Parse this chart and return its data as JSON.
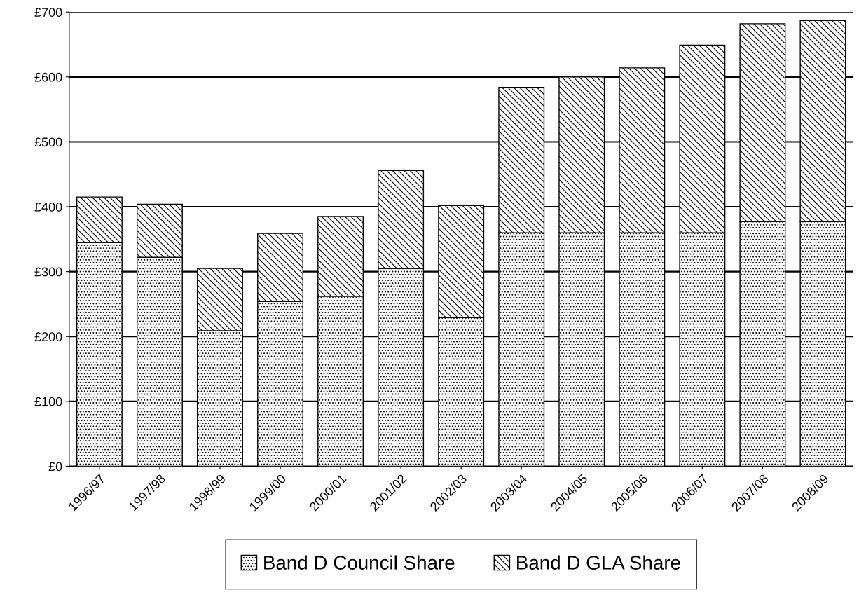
{
  "chart_data": {
    "type": "bar",
    "stacked": true,
    "categories": [
      "1996/97",
      "1997/98",
      "1998/99",
      "1999/00",
      "2000/01",
      "2001/02",
      "2002/03",
      "2003/04",
      "2004/05",
      "2005/06",
      "2006/07",
      "2007/08",
      "2008/09"
    ],
    "series": [
      {
        "name": "Band D Council Share",
        "color": "#000000",
        "values": [
          345,
          322,
          209,
          254,
          262,
          305,
          229,
          360,
          360,
          360,
          360,
          377,
          377
        ]
      },
      {
        "name": "Band D GLA Share",
        "color": "#000000",
        "values": [
          70,
          82,
          96,
          105,
          123,
          151,
          173,
          224,
          240,
          254,
          289,
          305,
          310
        ]
      }
    ],
    "ylim": [
      0,
      700
    ],
    "yticks": [
      {
        "value": 0,
        "label": "£0"
      },
      {
        "value": 100,
        "label": "£100"
      },
      {
        "value": 200,
        "label": "£200"
      },
      {
        "value": 300,
        "label": "£300"
      },
      {
        "value": 400,
        "label": "£400"
      },
      {
        "value": 500,
        "label": "£500"
      },
      {
        "value": 600,
        "label": "£600"
      },
      {
        "value": 700,
        "label": "£700"
      }
    ],
    "grid": "y",
    "legend": "bottom"
  }
}
